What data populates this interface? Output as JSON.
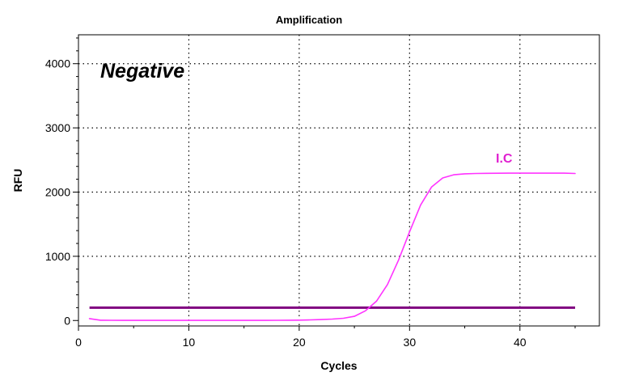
{
  "chart_data": {
    "type": "line",
    "title": "Amplification",
    "xlabel": "Cycles",
    "ylabel": "RFU",
    "xlim": [
      0,
      47.2
    ],
    "ylim": [
      -85,
      4450
    ],
    "xticks": [
      0,
      10,
      20,
      30,
      40
    ],
    "yticks": [
      0,
      1000,
      2000,
      3000,
      4000
    ],
    "grid": true,
    "annotations": [
      {
        "text": "Negative",
        "style": "bold-italic"
      }
    ],
    "threshold": {
      "value": 200,
      "x_range": [
        1,
        45
      ],
      "color": "#800080"
    },
    "series": [
      {
        "name": "I.C",
        "color": "#ff33ff",
        "x": [
          1,
          2,
          3,
          4,
          5,
          6,
          7,
          8,
          9,
          10,
          11,
          12,
          13,
          14,
          15,
          16,
          17,
          18,
          19,
          20,
          21,
          22,
          23,
          24,
          25,
          26,
          27,
          28,
          29,
          30,
          31,
          32,
          33,
          34,
          35,
          36,
          37,
          38,
          39,
          40,
          41,
          42,
          43,
          44,
          45
        ],
        "y": [
          30,
          5,
          3,
          2,
          2,
          2,
          2,
          2,
          2,
          2,
          2,
          2,
          2,
          2,
          2,
          2,
          2,
          3,
          4,
          6,
          10,
          15,
          22,
          35,
          65,
          150,
          300,
          560,
          940,
          1380,
          1800,
          2080,
          2220,
          2270,
          2285,
          2290,
          2292,
          2293,
          2294,
          2295,
          2295,
          2295,
          2295,
          2294,
          2290
        ]
      }
    ]
  }
}
